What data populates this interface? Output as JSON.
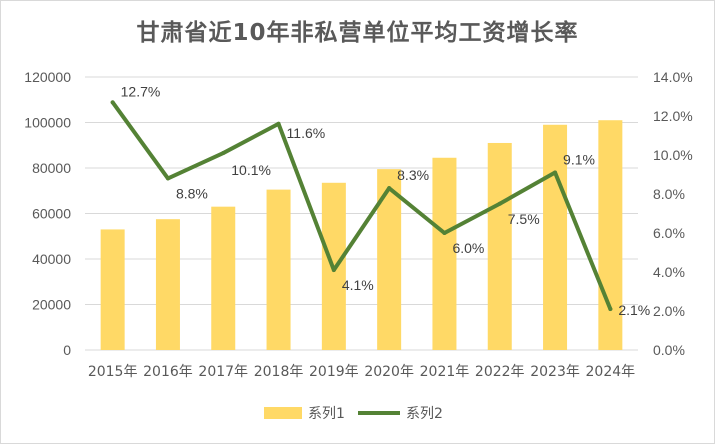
{
  "chart_data": {
    "type": "bar+line",
    "title": "甘肃省近10年非私营单位平均工资增长率",
    "categories": [
      "2015年",
      "2016年",
      "2017年",
      "2018年",
      "2019年",
      "2020年",
      "2021年",
      "2022年",
      "2023年",
      "2024年"
    ],
    "series": [
      {
        "name": "系列1",
        "type": "bar",
        "axis": "left",
        "color": "#FFD966",
        "values": [
          53000,
          57500,
          63000,
          70500,
          73500,
          79500,
          84500,
          91000,
          99000,
          101000
        ]
      },
      {
        "name": "系列2",
        "type": "line",
        "axis": "right",
        "color": "#548235",
        "values": [
          12.7,
          8.8,
          10.1,
          11.6,
          4.1,
          8.3,
          6.0,
          7.5,
          9.1,
          2.1
        ],
        "labels": [
          "12.7%",
          "8.8%",
          "10.1%",
          "11.6%",
          "4.1%",
          "8.3%",
          "6.0%",
          "7.5%",
          "9.1%",
          "2.1%"
        ]
      }
    ],
    "y_left": {
      "ylim": [
        0,
        120000
      ],
      "ticks": [
        "0",
        "20000",
        "40000",
        "60000",
        "80000",
        "100000",
        "120000"
      ]
    },
    "y_right": {
      "ylim": [
        0,
        14
      ],
      "ticks": [
        "0.0%",
        "2.0%",
        "4.0%",
        "6.0%",
        "8.0%",
        "10.0%",
        "12.0%",
        "14.0%"
      ]
    },
    "grid": true,
    "legend": {
      "position": "bottom",
      "entries": [
        "系列1",
        "系列2"
      ]
    }
  }
}
